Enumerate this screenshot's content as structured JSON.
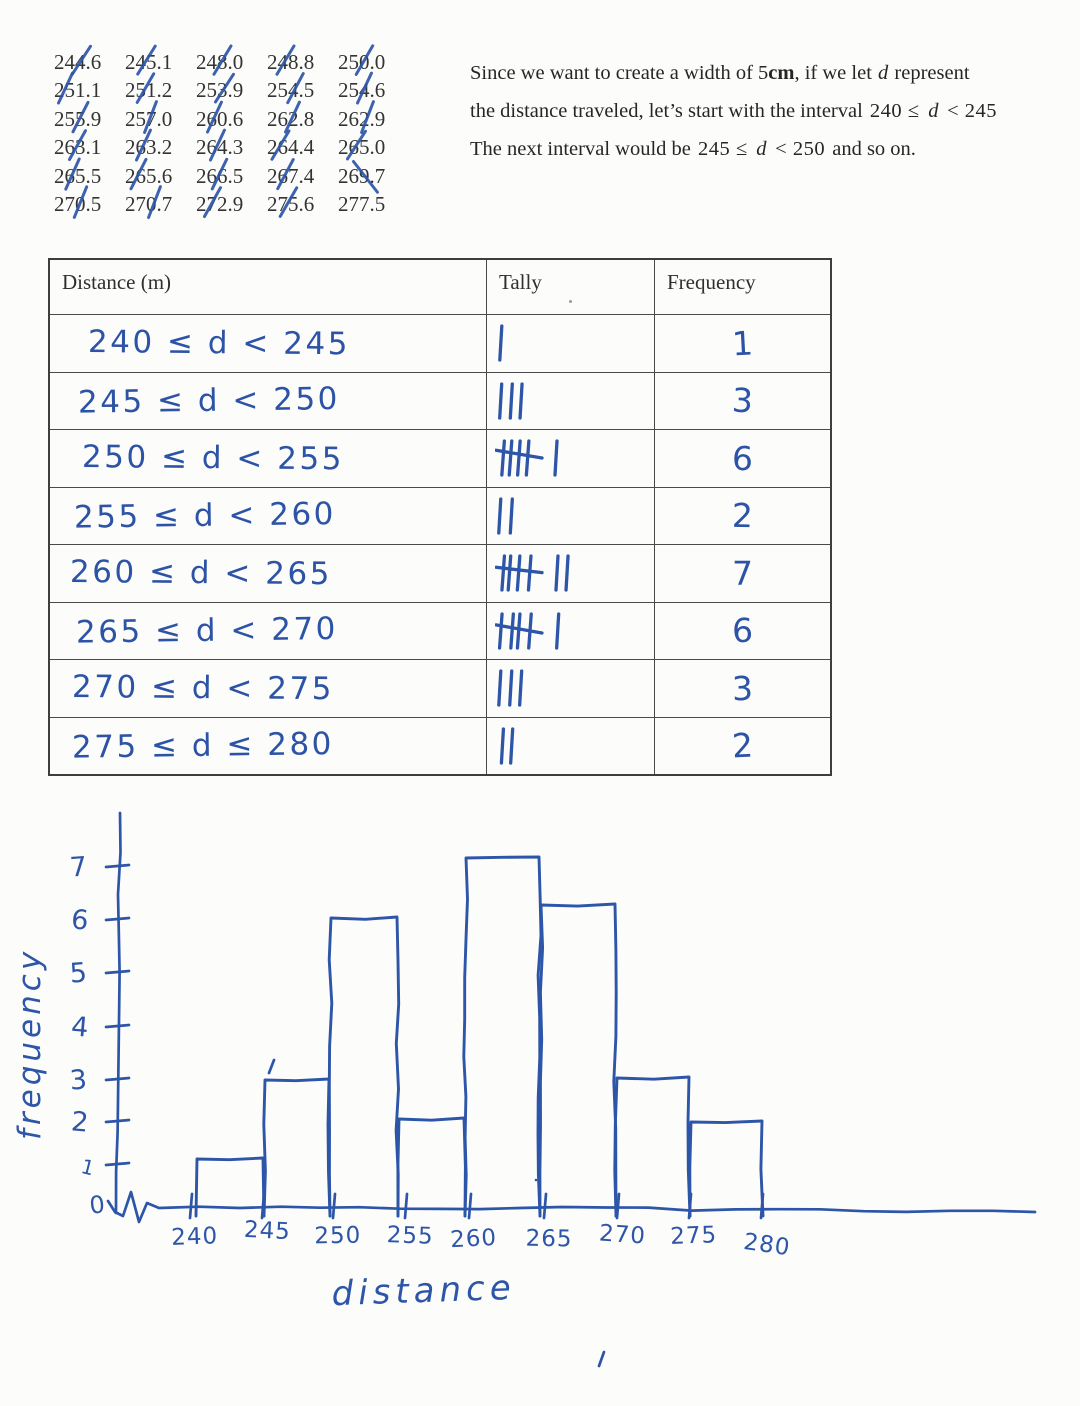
{
  "colors": {
    "pen": "#2d55a8",
    "ink": "#262626",
    "table_border": "#3e3e3e"
  },
  "data_list": {
    "values": [
      {
        "v": "244.6",
        "slash": "fwd"
      },
      {
        "v": "245.1",
        "slash": "fwd"
      },
      {
        "v": "248.0",
        "slash": "fwd"
      },
      {
        "v": "248.8",
        "slash": "fwd"
      },
      {
        "v": "250.0",
        "slash": "fwd"
      },
      {
        "v": "251.1",
        "slash": "fwd"
      },
      {
        "v": "251.2",
        "slash": "fwd"
      },
      {
        "v": "253.9",
        "slash": "fwd"
      },
      {
        "v": "254.5",
        "slash": "fwd"
      },
      {
        "v": "254.6",
        "slash": "fwd"
      },
      {
        "v": "255.9",
        "slash": "fwd"
      },
      {
        "v": "257.0",
        "slash": "fwd"
      },
      {
        "v": "260.6",
        "slash": "fwd"
      },
      {
        "v": "262.8",
        "slash": "fwd"
      },
      {
        "v": "262.9",
        "slash": "fwd"
      },
      {
        "v": "263.1",
        "slash": "fwd"
      },
      {
        "v": "263.2",
        "slash": "fwd"
      },
      {
        "v": "264.3",
        "slash": "fwd"
      },
      {
        "v": "264.4",
        "slash": "fwd"
      },
      {
        "v": "265.0",
        "slash": "fwd"
      },
      {
        "v": "265.5",
        "slash": "fwd"
      },
      {
        "v": "265.6",
        "slash": "fwd"
      },
      {
        "v": "266.5",
        "slash": "fwd"
      },
      {
        "v": "267.4",
        "slash": "fwd"
      },
      {
        "v": "269.7",
        "slash": "back"
      },
      {
        "v": "270.5",
        "slash": "fwd"
      },
      {
        "v": "270.7",
        "slash": "fwd"
      },
      {
        "v": "272.9",
        "slash": "fwd"
      },
      {
        "v": "275.6",
        "slash": "fwd"
      },
      {
        "v": "277.5",
        "slash": "none"
      }
    ]
  },
  "paragraph": {
    "lines": [
      [
        {
          "t": "Since we want to create a width of 5",
          "s": "n"
        },
        {
          "t": "cm",
          "s": "b"
        },
        {
          "t": ", if we let ",
          "s": "n"
        },
        {
          "t": "d",
          "s": "i"
        },
        {
          "t": " represent",
          "s": "n"
        }
      ],
      [
        {
          "t": "the distance traveled, let’s start with the interval ",
          "s": "n"
        },
        {
          "t": "240 ≤ ",
          "s": "m"
        },
        {
          "t": "d",
          "s": "i"
        },
        {
          "t": " < 245",
          "s": "m"
        }
      ],
      [
        {
          "t": "The next interval would be ",
          "s": "n"
        },
        {
          "t": "245 ≤ ",
          "s": "m"
        },
        {
          "t": "d",
          "s": "i"
        },
        {
          "t": " < 250",
          "s": "m"
        },
        {
          "t": "  and so on.",
          "s": "n"
        }
      ]
    ]
  },
  "table": {
    "headers": [
      "Distance (m)",
      "Tally",
      "Frequency"
    ],
    "rows": [
      {
        "interval": "240 ≤ d < 245",
        "tally_count": 1,
        "frequency": "1"
      },
      {
        "interval": "245 ≤ d < 250",
        "tally_count": 3,
        "frequency": "3"
      },
      {
        "interval": "250 ≤ d < 255",
        "tally_count": 6,
        "frequency": "6"
      },
      {
        "interval": "255 ≤ d < 260",
        "tally_count": 2,
        "frequency": "2"
      },
      {
        "interval": "260 ≤ d < 265",
        "tally_count": 7,
        "frequency": "7"
      },
      {
        "interval": "265 ≤ d < 270",
        "tally_count": 6,
        "frequency": "6"
      },
      {
        "interval": "270 ≤ d < 275",
        "tally_count": 3,
        "frequency": "3"
      },
      {
        "interval": "275 ≤ d ≤ 280",
        "tally_count": 2,
        "frequency": "2"
      }
    ]
  },
  "chart_data": {
    "type": "bar",
    "title": "",
    "xlabel": "distance",
    "ylabel": "frequency",
    "categories": [
      "240–245",
      "245–250",
      "250–255",
      "255–260",
      "260–265",
      "265–270",
      "270–275",
      "275–280"
    ],
    "values": [
      1,
      3,
      6,
      2,
      7,
      6,
      3,
      2
    ],
    "x_ticks": [
      "240",
      "245",
      "250",
      "255",
      "260",
      "265",
      "270",
      "275",
      "280"
    ],
    "y_ticks": [
      "0",
      "1",
      "2",
      "3",
      "4",
      "5",
      "6",
      "7"
    ],
    "origin_label": "0",
    "ylim": [
      0,
      8
    ],
    "grid": false,
    "legend": "none",
    "style": "hand-drawn blue pen histogram with axis break near origin"
  }
}
